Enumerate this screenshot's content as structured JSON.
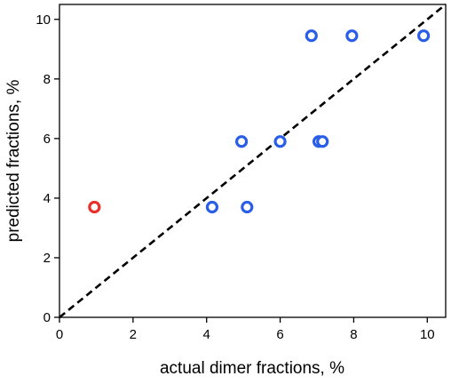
{
  "chart_data": {
    "type": "scatter",
    "xlabel": "actual dimer fractions, %",
    "ylabel": "predicted fractions, %",
    "xlim": [
      0,
      10.5
    ],
    "ylim": [
      0,
      10.5
    ],
    "xticks": [
      "0",
      "2",
      "4",
      "6",
      "8",
      "10"
    ],
    "yticks": [
      "0",
      "2",
      "4",
      "6",
      "8",
      "10"
    ],
    "reference_line": "y = x (dashed)",
    "grid": false,
    "series": [
      {
        "color": "#2b5ee8",
        "points": [
          {
            "x": 4.15,
            "y": 3.7
          },
          {
            "x": 5.1,
            "y": 3.7
          },
          {
            "x": 4.95,
            "y": 5.9
          },
          {
            "x": 6.0,
            "y": 5.9
          },
          {
            "x": 7.05,
            "y": 5.9
          },
          {
            "x": 7.15,
            "y": 5.9
          },
          {
            "x": 6.85,
            "y": 9.45
          },
          {
            "x": 7.95,
            "y": 9.45
          },
          {
            "x": 9.9,
            "y": 9.45
          }
        ]
      },
      {
        "color": "#e8302a",
        "points": [
          {
            "x": 0.95,
            "y": 3.7
          }
        ]
      }
    ]
  }
}
